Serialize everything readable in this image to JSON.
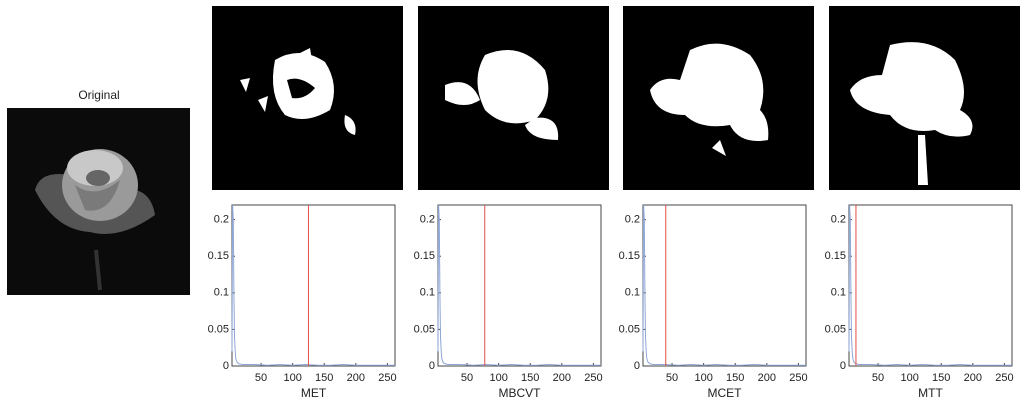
{
  "original": {
    "title": "Original"
  },
  "chart_data": [
    {
      "type": "line",
      "x_label": "MET",
      "color": "#8ea6d6",
      "threshold": 125,
      "threshold_color": "#e0504a",
      "x": [
        4,
        5,
        6,
        7,
        8,
        9,
        10,
        12,
        15,
        20,
        40,
        60,
        80,
        100,
        120,
        140,
        160,
        180,
        200,
        220,
        240,
        262
      ],
      "values": [
        0.02,
        0.22,
        0.2,
        0.1,
        0.04,
        0.02,
        0.01,
        0.005,
        0.003,
        0.002,
        0.002,
        0.001,
        0.002,
        0.001,
        0.002,
        0.001,
        0.001,
        0.002,
        0.001,
        0.001,
        0.001,
        0.001
      ],
      "xlim": [
        4,
        262
      ],
      "ylim": [
        0,
        0.22
      ],
      "xticks": [
        50,
        100,
        150,
        200,
        250
      ],
      "yticks": [
        0,
        0.05,
        0.1,
        0.15,
        0.2
      ]
    },
    {
      "type": "line",
      "x_label": "MBCVT",
      "color": "#8ea6d6",
      "threshold": 78,
      "threshold_color": "#e0504a",
      "x": [
        4,
        5,
        6,
        7,
        8,
        9,
        10,
        12,
        15,
        20,
        40,
        60,
        80,
        100,
        120,
        140,
        160,
        180,
        200,
        220,
        240,
        262
      ],
      "values": [
        0.02,
        0.22,
        0.2,
        0.1,
        0.04,
        0.02,
        0.01,
        0.005,
        0.003,
        0.002,
        0.002,
        0.001,
        0.002,
        0.001,
        0.002,
        0.001,
        0.001,
        0.002,
        0.001,
        0.001,
        0.001,
        0.001
      ],
      "xlim": [
        4,
        262
      ],
      "ylim": [
        0,
        0.22
      ],
      "xticks": [
        50,
        100,
        150,
        200,
        250
      ],
      "yticks": [
        0,
        0.05,
        0.1,
        0.15,
        0.2
      ]
    },
    {
      "type": "line",
      "x_label": "MCET",
      "color": "#8ea6d6",
      "threshold": 40,
      "threshold_color": "#e0504a",
      "x": [
        4,
        5,
        6,
        7,
        8,
        9,
        10,
        12,
        15,
        20,
        40,
        60,
        80,
        100,
        120,
        140,
        160,
        180,
        200,
        220,
        240,
        262
      ],
      "values": [
        0.02,
        0.22,
        0.2,
        0.1,
        0.04,
        0.02,
        0.01,
        0.005,
        0.003,
        0.002,
        0.002,
        0.001,
        0.002,
        0.001,
        0.002,
        0.001,
        0.001,
        0.002,
        0.001,
        0.001,
        0.001,
        0.001
      ],
      "xlim": [
        4,
        262
      ],
      "ylim": [
        0,
        0.22
      ],
      "xticks": [
        50,
        100,
        150,
        200,
        250
      ],
      "yticks": [
        0,
        0.05,
        0.1,
        0.15,
        0.2
      ]
    },
    {
      "type": "line",
      "x_label": "MTT",
      "color": "#8ea6d6",
      "threshold": 15,
      "threshold_color": "#e0504a",
      "x": [
        4,
        5,
        6,
        7,
        8,
        9,
        10,
        12,
        15,
        20,
        40,
        60,
        80,
        100,
        120,
        140,
        160,
        180,
        200,
        220,
        240,
        262
      ],
      "values": [
        0.02,
        0.22,
        0.2,
        0.1,
        0.04,
        0.02,
        0.01,
        0.005,
        0.003,
        0.002,
        0.002,
        0.001,
        0.002,
        0.001,
        0.002,
        0.001,
        0.001,
        0.002,
        0.001,
        0.001,
        0.001,
        0.001
      ],
      "xlim": [
        4,
        262
      ],
      "ylim": [
        0,
        0.22
      ],
      "xticks": [
        50,
        100,
        150,
        200,
        250
      ],
      "yticks": [
        0,
        0.05,
        0.1,
        0.15,
        0.2
      ]
    }
  ]
}
